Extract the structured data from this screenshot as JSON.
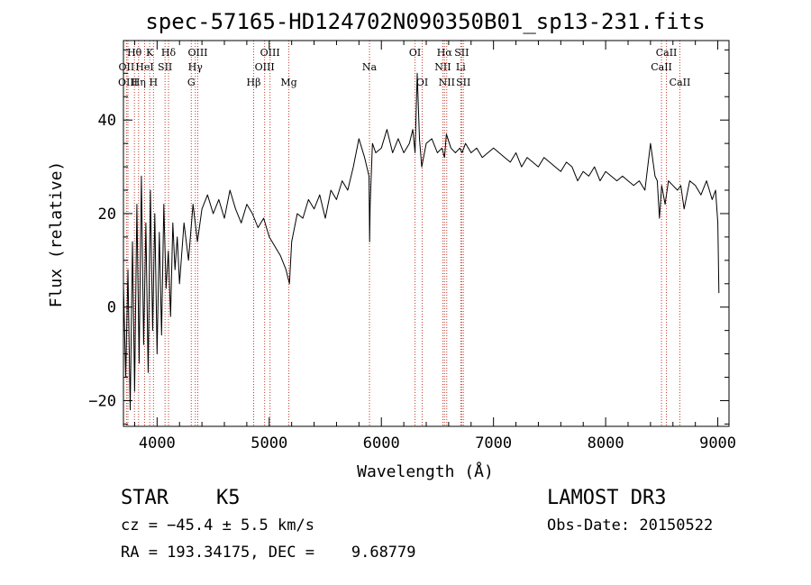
{
  "chart_data": {
    "type": "line",
    "title": "spec-57165-HD124702N090350B01_sp13-231.fits",
    "xlabel": "Wavelength (Å)",
    "ylabel": "Flux (relative)",
    "xlim": [
      3700,
      9100
    ],
    "ylim": [
      -25.5,
      57
    ],
    "x_ticks": [
      4000,
      5000,
      6000,
      7000,
      8000,
      9000
    ],
    "x_tick_labels": [
      "4000",
      "5000",
      "6000",
      "7000",
      "8000",
      "9000"
    ],
    "y_ticks": [
      -20,
      0,
      20,
      40
    ],
    "y_tick_labels": [
      "−20",
      "0",
      "20",
      "40"
    ],
    "x_minor_step": 200,
    "y_minor_step": 5,
    "grid": false,
    "series": [
      {
        "name": "flux",
        "x": [
          3700,
          3720,
          3740,
          3760,
          3780,
          3800,
          3820,
          3840,
          3860,
          3880,
          3900,
          3920,
          3940,
          3960,
          3980,
          4000,
          4020,
          4040,
          4060,
          4080,
          4100,
          4120,
          4140,
          4160,
          4180,
          4200,
          4240,
          4280,
          4320,
          4360,
          4400,
          4450,
          4500,
          4550,
          4600,
          4650,
          4700,
          4750,
          4800,
          4850,
          4900,
          4950,
          5000,
          5050,
          5100,
          5150,
          5180,
          5200,
          5250,
          5300,
          5350,
          5400,
          5450,
          5500,
          5550,
          5600,
          5650,
          5700,
          5750,
          5800,
          5850,
          5890,
          5895,
          5900,
          5920,
          5950,
          6000,
          6050,
          6100,
          6150,
          6200,
          6250,
          6280,
          6300,
          6320,
          6340,
          6360,
          6400,
          6450,
          6500,
          6540,
          6563,
          6580,
          6620,
          6660,
          6700,
          6720,
          6750,
          6800,
          6850,
          6900,
          6950,
          7000,
          7050,
          7100,
          7150,
          7200,
          7250,
          7300,
          7350,
          7400,
          7450,
          7500,
          7550,
          7600,
          7650,
          7700,
          7750,
          7800,
          7850,
          7900,
          7950,
          8000,
          8050,
          8100,
          8150,
          8200,
          8250,
          8300,
          8350,
          8400,
          8440,
          8460,
          8480,
          8500,
          8530,
          8560,
          8600,
          8640,
          8670,
          8700,
          8750,
          8800,
          8850,
          8900,
          8950,
          8980,
          9000,
          9010
        ],
        "y": [
          5,
          -15,
          8,
          -22,
          14,
          -18,
          22,
          -12,
          28,
          -8,
          18,
          -14,
          25,
          -5,
          20,
          -10,
          16,
          -6,
          22,
          4,
          12,
          -2,
          18,
          8,
          15,
          5,
          18,
          10,
          22,
          14,
          21,
          24,
          20,
          23,
          19,
          25,
          21,
          18,
          22,
          20,
          17,
          19,
          15,
          13,
          11,
          8,
          5,
          14,
          20,
          19,
          23,
          21,
          24,
          19,
          25,
          23,
          27,
          25,
          30,
          36,
          32,
          28,
          14,
          22,
          35,
          33,
          34,
          38,
          33,
          36,
          33,
          35,
          38,
          33,
          50,
          36,
          30,
          35,
          36,
          33,
          34,
          32,
          37,
          34,
          33,
          34,
          33,
          35,
          33,
          34,
          32,
          33,
          34,
          33,
          32,
          31,
          33,
          30,
          32,
          31,
          30,
          32,
          31,
          30,
          29,
          31,
          30,
          27,
          29,
          28,
          30,
          27,
          29,
          28,
          27,
          28,
          27,
          26,
          27,
          25,
          35,
          28,
          27,
          19,
          26,
          22,
          27,
          26,
          25,
          26,
          21,
          27,
          26,
          24,
          27,
          23,
          25,
          18,
          3
        ]
      }
    ],
    "line_annotations": [
      {
        "label": "Hθ",
        "x": 3798,
        "row": 1
      },
      {
        "label": "OII",
        "x": 3727,
        "row": 2
      },
      {
        "label": "OIII",
        "x": 3740,
        "row": 3
      },
      {
        "label": "Hη",
        "x": 3835,
        "row": 3
      },
      {
        "label": "HeI",
        "x": 3889,
        "row": 2
      },
      {
        "label": "K",
        "x": 3934,
        "row": 1
      },
      {
        "label": "H",
        "x": 3968,
        "row": 3
      },
      {
        "label": "SII",
        "x": 4071,
        "row": 2
      },
      {
        "label": "Hδ",
        "x": 4102,
        "row": 1
      },
      {
        "label": "G",
        "x": 4305,
        "row": 3
      },
      {
        "label": "Hγ",
        "x": 4341,
        "row": 2
      },
      {
        "label": "OIII",
        "x": 4363,
        "row": 1
      },
      {
        "label": "Hβ",
        "x": 4861,
        "row": 3
      },
      {
        "label": "OIII",
        "x": 4959,
        "row": 2
      },
      {
        "label": "OIII",
        "x": 5007,
        "row": 1
      },
      {
        "label": "Mg",
        "x": 5175,
        "row": 3
      },
      {
        "label": "Na",
        "x": 5894,
        "row": 2
      },
      {
        "label": "OI",
        "x": 6300,
        "row": 1
      },
      {
        "label": "OI",
        "x": 6364,
        "row": 3
      },
      {
        "label": "NII",
        "x": 6548,
        "row": 2
      },
      {
        "label": "Hα",
        "x": 6563,
        "row": 1
      },
      {
        "label": "NII",
        "x": 6583,
        "row": 3
      },
      {
        "label": "SII",
        "x": 6716,
        "row": 1
      },
      {
        "label": "Li",
        "x": 6708,
        "row": 2
      },
      {
        "label": "SII",
        "x": 6731,
        "row": 3
      },
      {
        "label": "CaII",
        "x": 8498,
        "row": 2
      },
      {
        "label": "CaII",
        "x": 8542,
        "row": 1
      },
      {
        "label": "CaII",
        "x": 8662,
        "row": 3
      }
    ]
  },
  "info": {
    "object_class": "STAR",
    "subclass": "K5",
    "survey": "LAMOST DR3",
    "redshift": "cz = −45.4 ± 5.5 km/s",
    "obs_date": "Obs-Date: 20150522",
    "coords": "RA = 193.34175, DEC =    9.68779"
  },
  "colors": {
    "axis": "#000000",
    "spectrum": "#000000",
    "line_marker": "#c0392b",
    "background": "#ffffff"
  }
}
